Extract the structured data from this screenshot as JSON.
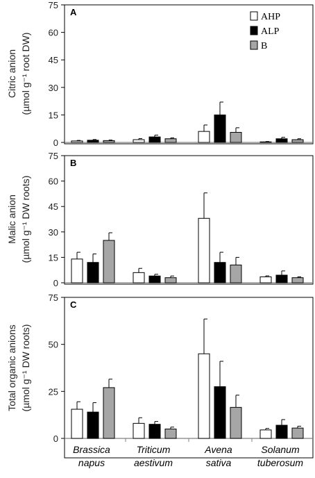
{
  "chart_data": [
    {
      "type": "bar",
      "panel_label": "A",
      "ylabel_lines": [
        "Citric anion",
        "(µmol g⁻¹ root DW)"
      ],
      "yticks": [
        0,
        15,
        30,
        45,
        60,
        75
      ],
      "ylim": [
        0,
        75
      ],
      "categories": [
        "Brassica napus",
        "Triticum aestivum",
        "Avena sativa",
        "Solanum tuberosum"
      ],
      "series": [
        {
          "name": "AHP",
          "values": [
            0.8,
            1.5,
            6,
            0.3
          ],
          "errors": [
            0.3,
            0.6,
            3.5,
            0.2
          ]
        },
        {
          "name": "ALP",
          "values": [
            1.2,
            3,
            15,
            2
          ],
          "errors": [
            0.4,
            1,
            7,
            0.8
          ]
        },
        {
          "name": "B",
          "values": [
            1,
            2,
            5.5,
            1.5
          ],
          "errors": [
            0.3,
            0.5,
            2.5,
            0.5
          ]
        }
      ]
    },
    {
      "type": "bar",
      "panel_label": "B",
      "ylabel_lines": [
        "Malic anion",
        "(µmol g⁻¹ DW roots)"
      ],
      "yticks": [
        0,
        15,
        30,
        45,
        60,
        75
      ],
      "ylim": [
        0,
        75
      ],
      "categories": [
        "Brassica napus",
        "Triticum aestivum",
        "Avena sativa",
        "Solanum tuberosum"
      ],
      "series": [
        {
          "name": "AHP",
          "values": [
            14,
            6,
            38,
            3.5
          ],
          "errors": [
            4,
            2.5,
            15,
            0.6
          ]
        },
        {
          "name": "ALP",
          "values": [
            12,
            4,
            12,
            4.5
          ],
          "errors": [
            5,
            1,
            6,
            2.5
          ]
        },
        {
          "name": "B",
          "values": [
            25,
            3,
            10.5,
            3
          ],
          "errors": [
            4.5,
            1,
            4.5,
            0.5
          ]
        }
      ]
    },
    {
      "type": "bar",
      "panel_label": "C",
      "ylabel_lines": [
        "Total  organic anions",
        "(µmol g⁻¹ DW roots)"
      ],
      "yticks": [
        0,
        25,
        50,
        75
      ],
      "ylim": [
        0,
        75
      ],
      "categories": [
        "Brassica napus",
        "Triticum aestivum",
        "Avena sativa",
        "Solanum tuberosum"
      ],
      "series": [
        {
          "name": "AHP",
          "values": [
            15.5,
            8,
            45,
            4.5
          ],
          "errors": [
            4,
            3,
            18.5,
            0.8
          ]
        },
        {
          "name": "ALP",
          "values": [
            14,
            7.5,
            27.5,
            7
          ],
          "errors": [
            5,
            1.5,
            13.5,
            3
          ]
        },
        {
          "name": "B",
          "values": [
            27,
            5,
            16.5,
            5.5
          ],
          "errors": [
            4.5,
            1,
            6.5,
            1
          ]
        }
      ]
    }
  ],
  "legend": [
    {
      "name": "AHP",
      "color": "#ffffff"
    },
    {
      "name": "ALP",
      "color": "#000000"
    },
    {
      "name": "B",
      "color": "#a6a6a6"
    }
  ],
  "category_labels": [
    [
      "Brassica",
      "napus"
    ],
    [
      "Triticum",
      "aestivum"
    ],
    [
      "Avena",
      "sativa"
    ],
    [
      "Solanum",
      "tuberosum"
    ]
  ],
  "colors": {
    "AHP": "#ffffff",
    "ALP": "#000000",
    "B": "#a6a6a6",
    "stroke": "#000000",
    "axis": "#808080"
  }
}
